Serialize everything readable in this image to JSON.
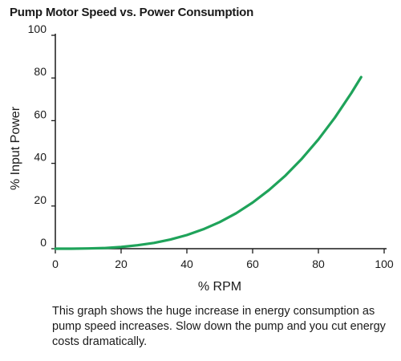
{
  "chart_data": {
    "type": "line",
    "title": "Pump Motor Speed vs. Power Consumption",
    "xlabel": "% RPM",
    "ylabel": "% Input Power",
    "xlim": [
      0,
      100
    ],
    "ylim": [
      0,
      100
    ],
    "x_ticks": [
      "0",
      "20",
      "40",
      "60",
      "80",
      "100"
    ],
    "y_ticks": [
      "0",
      "20",
      "40",
      "60",
      "80",
      "100"
    ],
    "grid": false,
    "legend": "none",
    "series": [
      {
        "color": "#1fa35a",
        "x": [
          0,
          5,
          10,
          15,
          20,
          25,
          30,
          35,
          40,
          45,
          50,
          55,
          60,
          65,
          70,
          75,
          80,
          85,
          90,
          93
        ],
        "y": [
          0,
          0,
          0.1,
          0.3,
          0.8,
          1.6,
          2.7,
          4.3,
          6.4,
          9.1,
          12.5,
          16.6,
          21.6,
          27.5,
          34.3,
          42.2,
          51.2,
          61.4,
          72.9,
          80.4
        ]
      }
    ]
  },
  "caption": "This graph shows the huge increase in energy consumption as pump speed increases. Slow down the pump and you cut energy costs dramatically."
}
